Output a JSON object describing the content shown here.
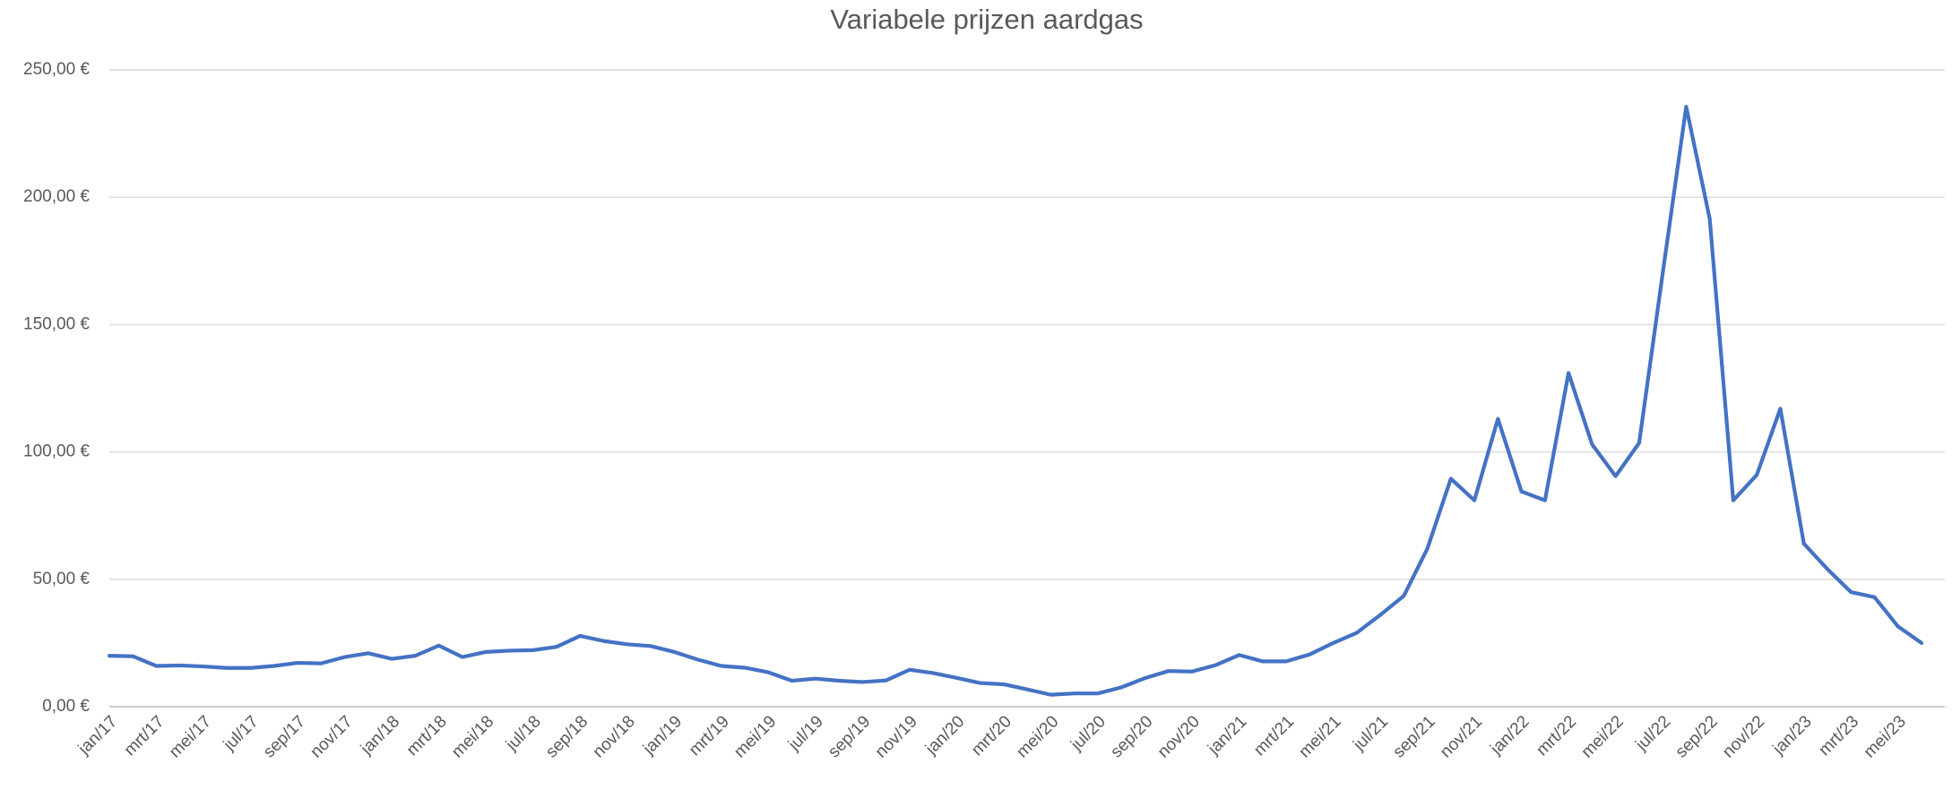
{
  "chart_data": {
    "type": "line",
    "title": "Variabele prijzen aardgas",
    "categories": [
      "jan/17",
      null,
      "mrt/17",
      null,
      "mei/17",
      null,
      "jul/17",
      null,
      "sep/17",
      null,
      "nov/17",
      null,
      "jan/18",
      null,
      "mrt/18",
      null,
      "mei/18",
      null,
      "jul/18",
      null,
      "sep/18",
      null,
      "nov/18",
      null,
      "jan/19",
      null,
      "mrt/19",
      null,
      "mei/19",
      null,
      "jul/19",
      null,
      "sep/19",
      null,
      "nov/19",
      null,
      "jan/20",
      null,
      "mrt/20",
      null,
      "mei/20",
      null,
      "jul/20",
      null,
      "sep/20",
      null,
      "nov/20",
      null,
      "jan/21",
      null,
      "mrt/21",
      null,
      "mei/21",
      null,
      "jul/21",
      null,
      "sep/21",
      null,
      "nov/21",
      null,
      "jan/22",
      null,
      "mrt/22",
      null,
      "mei/22",
      null,
      "jul/22",
      null,
      "sep/22",
      null,
      "nov/22",
      null,
      "jan/23",
      null,
      "mrt/23",
      null,
      "mei/23",
      null
    ],
    "series": [
      {
        "name": "Variabele prijzen aardgas",
        "color": "#4472c4",
        "values": [
          20,
          19.8,
          16,
          16.2,
          15.8,
          15.2,
          15.2,
          16,
          17.2,
          17,
          19.5,
          21,
          18.8,
          20,
          24,
          19.5,
          21.5,
          22,
          22.2,
          23.5,
          27.8,
          25.8,
          24.5,
          23.8,
          21.5,
          18.5,
          16,
          15.3,
          13.5,
          10.2,
          11,
          10.2,
          9.7,
          10.3,
          14.5,
          13.2,
          11.3,
          9.3,
          8.8,
          6.8,
          4.7,
          5.2,
          5.2,
          7.6,
          11.2,
          14,
          13.8,
          16.3,
          20.3,
          17.8,
          17.8,
          20.5,
          25,
          29,
          36,
          43.5,
          62,
          89.5,
          81,
          113,
          84.5,
          81,
          131,
          103,
          90.5,
          103.5,
          170,
          235.5,
          191.5,
          81,
          91,
          117,
          64,
          54,
          45,
          43,
          31.5,
          25
        ]
      }
    ],
    "ylim": [
      0,
      250
    ],
    "yticks": [
      {
        "value": 0,
        "label": "0,00 €"
      },
      {
        "value": 50,
        "label": "50,00 €"
      },
      {
        "value": 100,
        "label": "100,00 €"
      },
      {
        "value": 150,
        "label": "150,00 €"
      },
      {
        "value": 200,
        "label": "200,00 €"
      },
      {
        "value": 250,
        "label": "250,00 €"
      }
    ],
    "grid": true
  }
}
